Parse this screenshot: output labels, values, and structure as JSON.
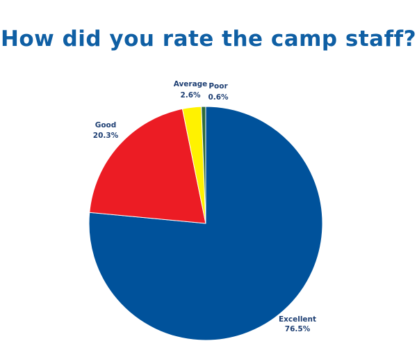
{
  "chart_data": {
    "type": "pie",
    "title": "How did you rate the camp staff?",
    "slices": [
      {
        "label": "Excellent",
        "value": 76.5,
        "value_label": "76.5%",
        "color": "#00529b"
      },
      {
        "label": "Good",
        "value": 20.3,
        "value_label": "20.3%",
        "color": "#ec1c24"
      },
      {
        "label": "Average",
        "value": 2.6,
        "value_label": "2.6%",
        "color": "#fff200"
      },
      {
        "label": "Poor",
        "value": 0.6,
        "value_label": "0.6%",
        "color": "#2e6b3a"
      }
    ],
    "start_angle": "12 o'clock",
    "direction": "clockwise",
    "legend": "none",
    "title_color": "#0f5fa4"
  }
}
